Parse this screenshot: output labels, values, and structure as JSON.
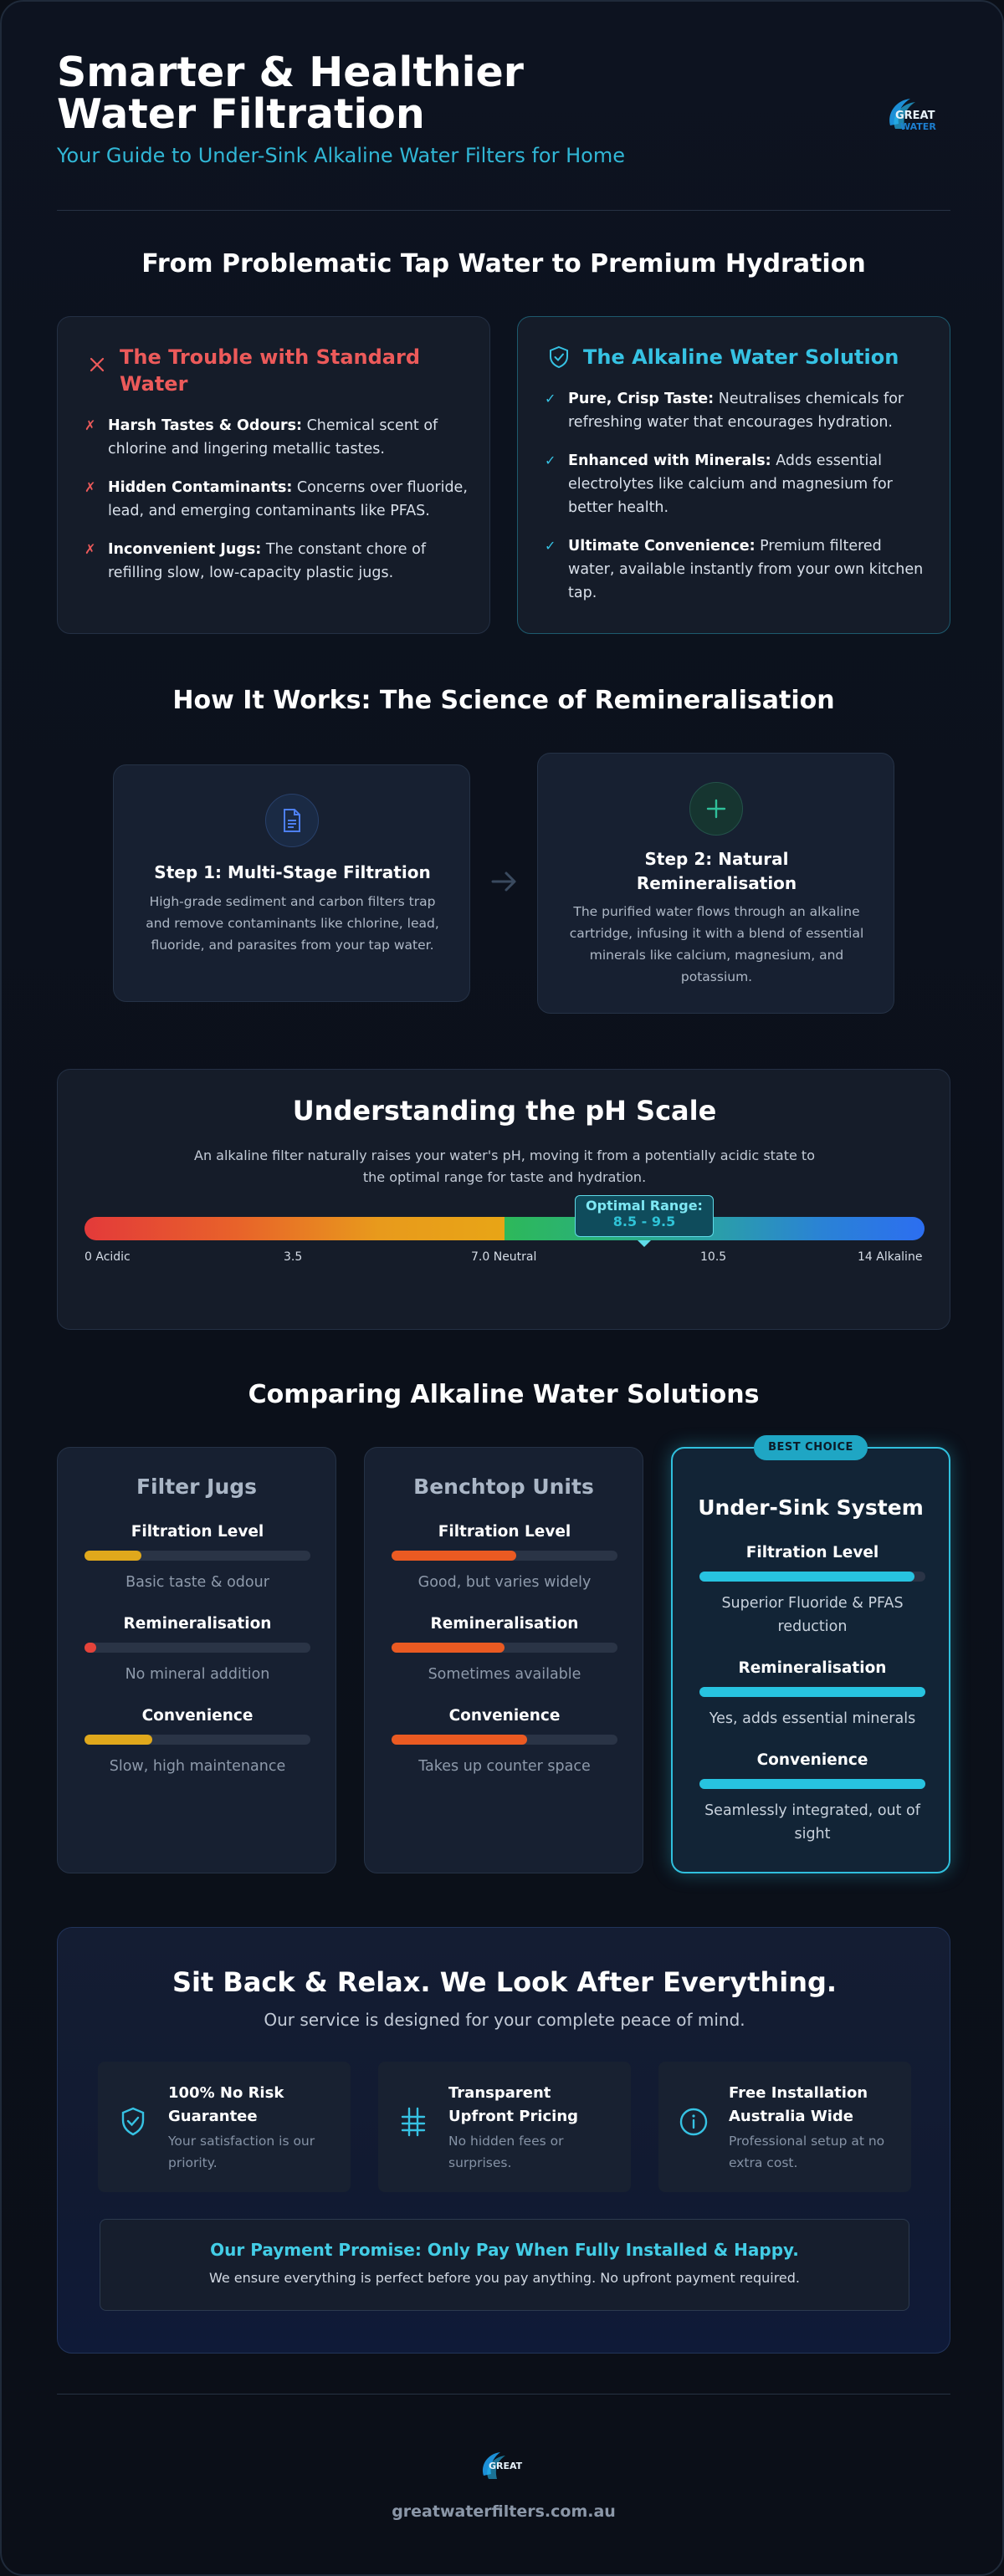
{
  "header": {
    "title_line1": "Smarter & Healthier",
    "title_line2": "Water Filtration",
    "subtitle": "Your Guide to Under-Sink Alkaline Water Filters for Home",
    "logo_text": "GREAT WATER"
  },
  "problem_section": {
    "title": "From Problematic Tap Water to Premium Hydration",
    "trouble": {
      "title": "The Trouble with Standard Water",
      "icon": "x-icon",
      "items": [
        {
          "bold": "Harsh Tastes & Odours:",
          "text": " Chemical scent of chlorine and lingering metallic tastes."
        },
        {
          "bold": "Hidden Contaminants:",
          "text": " Concerns over fluoride, lead, and emerging contaminants like PFAS."
        },
        {
          "bold": "Inconvenient Jugs:",
          "text": " The constant chore of refilling slow, low-capacity plastic jugs."
        }
      ]
    },
    "solution": {
      "title": "The Alkaline Water Solution",
      "icon": "shield-check-icon",
      "items": [
        {
          "bold": "Pure, Crisp Taste:",
          "text": " Neutralises chemicals for refreshing water that encourages hydration."
        },
        {
          "bold": "Enhanced with Minerals:",
          "text": " Adds essential electrolytes like calcium and magnesium for better health."
        },
        {
          "bold": "Ultimate Convenience:",
          "text": " Premium filtered water, available instantly from your own kitchen tap."
        }
      ]
    }
  },
  "how_it_works": {
    "title": "How It Works: The Science of Remineralisation",
    "steps": [
      {
        "title": "Step 1: Multi-Stage Filtration",
        "desc": "High-grade sediment and carbon filters trap and remove contaminants like chlorine, lead, fluoride, and parasites from your tap water.",
        "icon": "document-icon"
      },
      {
        "title": "Step 2: Natural Remineralisation",
        "desc": "The purified water flows through an alkaline cartridge, infusing it with a blend of essential minerals like calcium, magnesium, and potassium.",
        "icon": "plus-icon"
      }
    ]
  },
  "ph": {
    "title": "Understanding the pH Scale",
    "desc": "An alkaline filter naturally raises your water's pH, moving it from a potentially acidic state to the optimal range for taste and hydration.",
    "range_label": "Optimal Range:",
    "range_value": "8.5 - 9.5",
    "ticks": [
      "0 Acidic",
      "3.5",
      "7.0 Neutral",
      "10.5",
      "14 Alkaline"
    ]
  },
  "comparison": {
    "title": "Comparing Alkaline Water Solutions",
    "badge": "BEST CHOICE",
    "products": [
      {
        "name": "Filter Jugs",
        "metrics": [
          {
            "label": "Filtration Level",
            "level": 0.25,
            "color": "#e0a81c",
            "note": "Basic taste & odour"
          },
          {
            "label": "Remineralisation",
            "level": 0.05,
            "color": "#e5433a",
            "note": "No mineral addition"
          },
          {
            "label": "Convenience",
            "level": 0.3,
            "color": "#e0a81c",
            "note": "Slow, high maintenance"
          }
        ]
      },
      {
        "name": "Benchtop Units",
        "metrics": [
          {
            "label": "Filtration Level",
            "level": 0.55,
            "color": "#ea5a22",
            "note": "Good, but varies widely"
          },
          {
            "label": "Remineralisation",
            "level": 0.5,
            "color": "#ea5a22",
            "note": "Sometimes available"
          },
          {
            "label": "Convenience",
            "level": 0.6,
            "color": "#ea5a22",
            "note": "Takes up counter space"
          }
        ]
      },
      {
        "name": "Under-Sink System",
        "metrics": [
          {
            "label": "Filtration Level",
            "level": 0.95,
            "color": "#27c3e0",
            "note": "Superior Fluoride & PFAS reduction"
          },
          {
            "label": "Remineralisation",
            "level": 1.0,
            "color": "#27c3e0",
            "note": "Yes, adds essential minerals"
          },
          {
            "label": "Convenience",
            "level": 1.0,
            "color": "#27c3e0",
            "note": "Seamlessly integrated, out of sight"
          }
        ]
      }
    ]
  },
  "service": {
    "title": "Sit Back & Relax. We Look After Everything.",
    "subtitle": "Our service is designed for your complete peace of mind.",
    "features": [
      {
        "title": "100% No Risk Guarantee",
        "desc": "Your satisfaction is our priority.",
        "icon": "shield-check-icon"
      },
      {
        "title": "Transparent Upfront Pricing",
        "desc": "No hidden fees or surprises.",
        "icon": "price-tag-icon"
      },
      {
        "title": "Free Installation Australia Wide",
        "desc": "Professional setup at no extra cost.",
        "icon": "info-icon"
      }
    ],
    "promise_title": "Our Payment Promise: Only Pay When Fully Installed & Happy.",
    "promise_desc": "We ensure everything is perfect before you pay anything. No upfront payment required."
  },
  "footer": {
    "logo_text": "GREAT",
    "url": "greatwaterfilters.com.au"
  },
  "colors": {
    "accent": "#31b7d6",
    "danger": "#ec5a5a",
    "background": "#0b0f17"
  }
}
